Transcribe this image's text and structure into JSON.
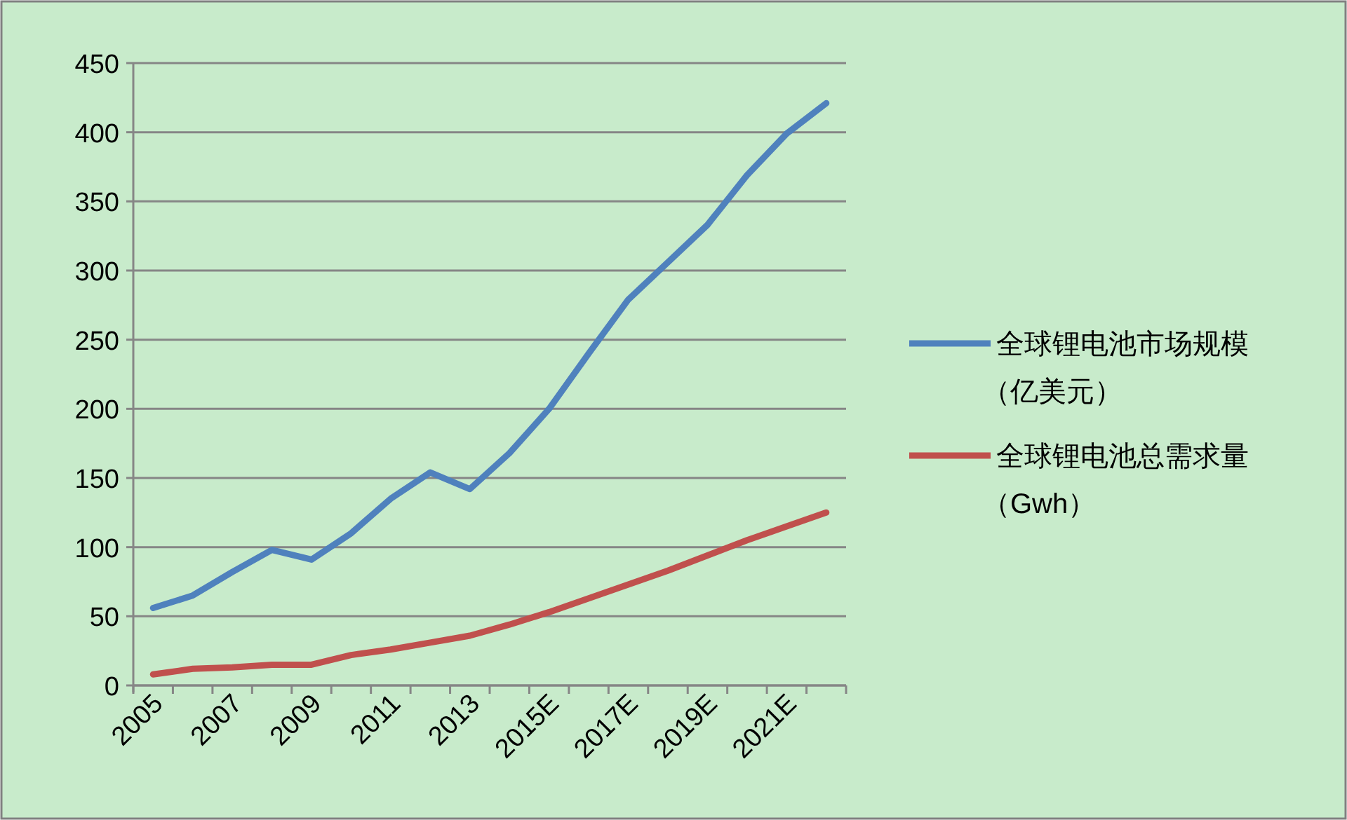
{
  "chart_data": {
    "type": "line",
    "categories": [
      "2005",
      null,
      "2007",
      null,
      "2009",
      null,
      "2011",
      null,
      "2013",
      null,
      "2015E",
      null,
      "2017E",
      null,
      "2019E",
      null,
      "2021E",
      null
    ],
    "series": [
      {
        "name": "全球锂电池市场规模（亿美元）",
        "color": "#4f81bd",
        "values": [
          56,
          65,
          82,
          98,
          91,
          110,
          135,
          154,
          142,
          168,
          200,
          240,
          279,
          306,
          333,
          369,
          399,
          421
        ]
      },
      {
        "name": "全球锂电池总需求量（Gwh）",
        "color": "#c0504d",
        "values": [
          8,
          12,
          13,
          15,
          15,
          22,
          26,
          31,
          36,
          44,
          53,
          63,
          73,
          83,
          94,
          105,
          115,
          125
        ]
      }
    ],
    "ylim": [
      0,
      450
    ],
    "yticks": [
      0,
      50,
      100,
      150,
      200,
      250,
      300,
      350,
      400,
      450
    ],
    "grid": "y",
    "legend": "right",
    "marker": "none",
    "line_style": "solid"
  }
}
